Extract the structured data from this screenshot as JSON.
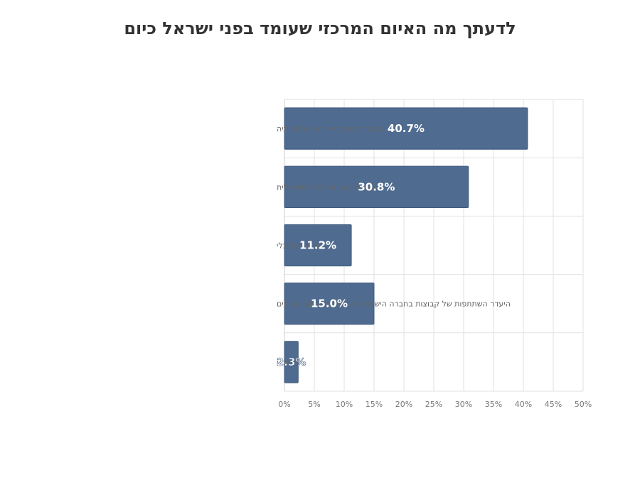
{
  "chart_data": {
    "type": "bar",
    "orientation": "horizontal",
    "title": "לדעתך מה האיום המרכזי שעומד בפני ישראל כיום",
    "categories": [
      "המצב הביטחוני איראן ושלוחותיה",
      "מצב הקיטוב בחברה הישראלית",
      "המצב הכלכלי",
      "היעדר השתתפות של קבוצות בחברה הישראלית בנטל הביטחון והמיסים",
      "לא יודע"
    ],
    "values": [
      40.7,
      30.8,
      11.2,
      15.0,
      2.3
    ],
    "data_labels": [
      "40.7%",
      "30.8%",
      "11.2%",
      "15.0%",
      "2.3%"
    ],
    "x_ticks": [
      "0%",
      "5%",
      "10%",
      "15%",
      "20%",
      "25%",
      "30%",
      "35%",
      "40%",
      "45%",
      "50%"
    ],
    "xlim": [
      0,
      50
    ],
    "grid": true,
    "legend": "none",
    "colors": {
      "bar": "#4f6b8f",
      "bar_border": "#3f5a7d",
      "grid": "#e2e2e2",
      "axis": "#cccccc",
      "title": "#333333"
    }
  }
}
